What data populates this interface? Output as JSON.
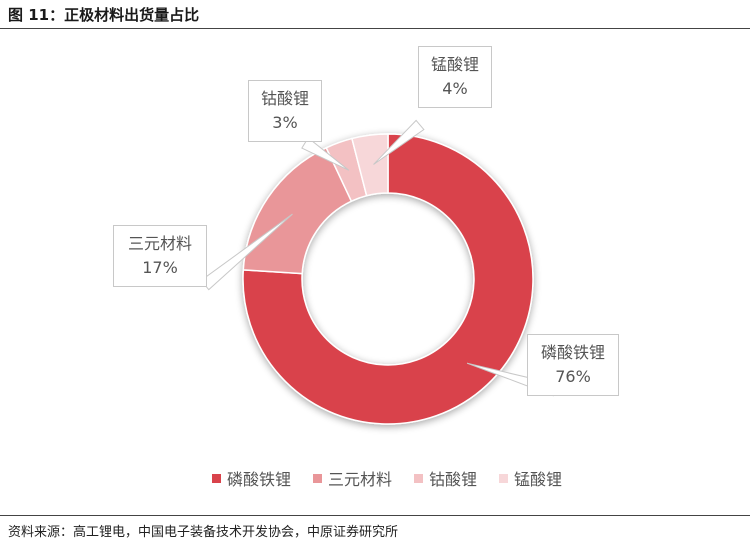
{
  "figure": {
    "title": "图 11：正极材料出货量占比"
  },
  "source": "资料来源：高工锂电，中国电子装备技术开发协会，中原证券研究所",
  "chart_data": {
    "type": "pie",
    "donut": true,
    "categories": [
      "磷酸铁锂",
      "三元材料",
      "钴酸锂",
      "锰酸锂"
    ],
    "values": [
      76,
      17,
      3,
      4
    ],
    "labels": [
      "76%",
      "17%",
      "3%",
      "4%"
    ],
    "colors": [
      "#d9434b",
      "#e99699",
      "#f3c1c3",
      "#f7d7d9"
    ],
    "legend_position": "bottom"
  }
}
